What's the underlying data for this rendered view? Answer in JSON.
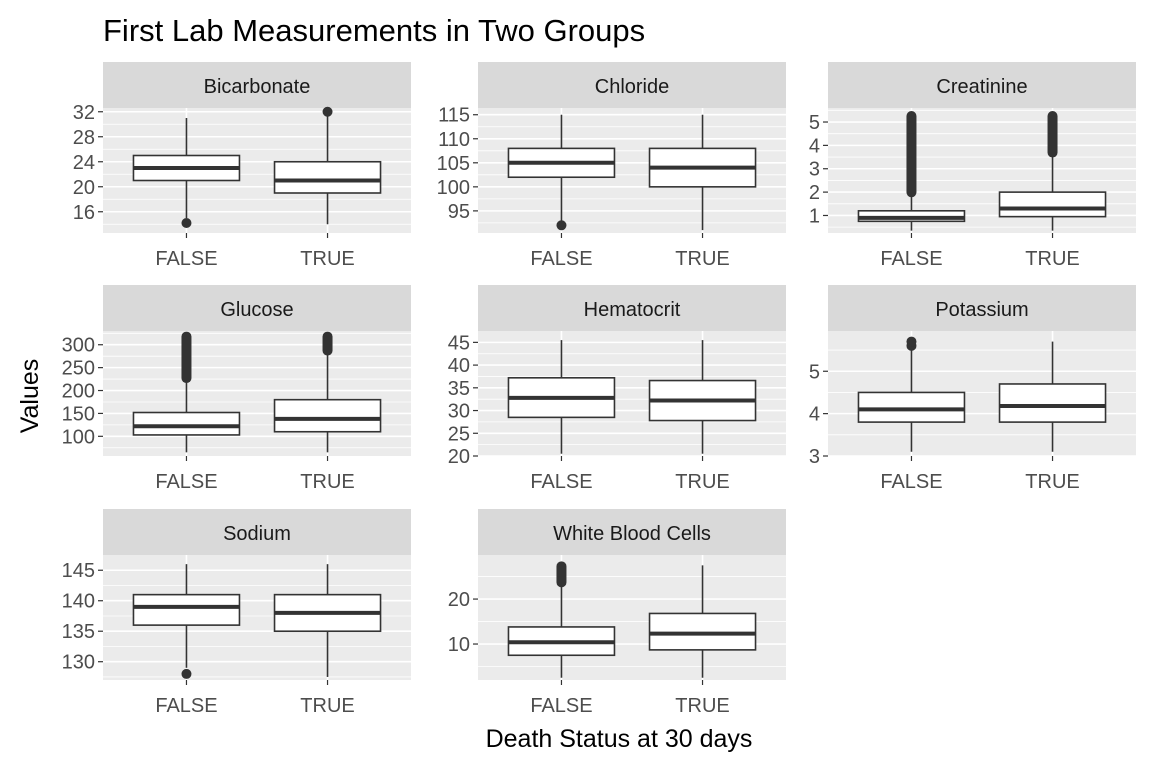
{
  "chart_data": {
    "type": "boxplot",
    "title": "First Lab Measurements in Two Groups",
    "xlabel": "Death Status at 30 days",
    "ylabel": "Values",
    "categories": [
      "FALSE",
      "TRUE"
    ],
    "grid": true,
    "colors": {
      "panel_bg": "#ebebeb",
      "strip_bg": "#d9d9d9",
      "grid": "#ffffff",
      "box_fill": "#ffffff",
      "box_stroke": "#333333",
      "tick_text": "#4d4d4d",
      "title_text": "#000000"
    },
    "panels": [
      {
        "name": "Bicarbonate",
        "ylim": [
          12.6,
          32.6
        ],
        "ticks": [
          16,
          20,
          24,
          28,
          32
        ],
        "boxes": [
          {
            "category": "FALSE",
            "q1": 21,
            "median": 23,
            "q3": 25,
            "lower": 15,
            "upper": 31,
            "outliers": [
              14.2
            ]
          },
          {
            "category": "TRUE",
            "q1": 19,
            "median": 21,
            "q3": 24,
            "lower": 14,
            "upper": 31.5,
            "outliers": [
              32
            ]
          }
        ]
      },
      {
        "name": "Chloride",
        "ylim": [
          90.4,
          116.4
        ],
        "ticks": [
          95,
          100,
          105,
          110,
          115
        ],
        "boxes": [
          {
            "category": "FALSE",
            "q1": 102,
            "median": 105,
            "q3": 108,
            "lower": 93,
            "upper": 115,
            "outliers": [
              92
            ]
          },
          {
            "category": "TRUE",
            "q1": 100,
            "median": 104,
            "q3": 108,
            "lower": 91,
            "upper": 115,
            "outliers": []
          }
        ]
      },
      {
        "name": "Creatinine",
        "ylim": [
          0.25,
          5.6
        ],
        "ticks": [
          1,
          2,
          3,
          4,
          5
        ],
        "boxes": [
          {
            "category": "FALSE",
            "q1": 0.75,
            "median": 0.9,
            "q3": 1.2,
            "lower": 0.35,
            "upper": 1.95,
            "outlier_band": [
              1.95,
              5.3
            ]
          },
          {
            "category": "TRUE",
            "q1": 0.95,
            "median": 1.3,
            "q3": 2.0,
            "lower": 0.35,
            "upper": 3.65,
            "outlier_band": [
              3.65,
              5.3
            ]
          }
        ]
      },
      {
        "name": "Glucose",
        "ylim": [
          57,
          330
        ],
        "ticks": [
          100,
          150,
          200,
          250,
          300
        ],
        "boxes": [
          {
            "category": "FALSE",
            "q1": 103,
            "median": 122,
            "q3": 152,
            "lower": 65,
            "upper": 225,
            "outlier_band": [
              225,
              320
            ]
          },
          {
            "category": "TRUE",
            "q1": 110,
            "median": 138,
            "q3": 180,
            "lower": 65,
            "upper": 285,
            "outlier_band": [
              285,
              320
            ]
          }
        ]
      },
      {
        "name": "Hematocrit",
        "ylim": [
          20,
          47.5
        ],
        "ticks": [
          20,
          25,
          30,
          35,
          40,
          45
        ],
        "boxes": [
          {
            "category": "FALSE",
            "q1": 28.5,
            "median": 32.8,
            "q3": 37.2,
            "lower": 20.5,
            "upper": 45.5,
            "outliers": []
          },
          {
            "category": "TRUE",
            "q1": 27.8,
            "median": 32.2,
            "q3": 36.6,
            "lower": 20.5,
            "upper": 45.5,
            "outliers": []
          }
        ]
      },
      {
        "name": "Potassium",
        "ylim": [
          3,
          5.95
        ],
        "ticks": [
          3,
          4,
          5
        ],
        "boxes": [
          {
            "category": "FALSE",
            "q1": 3.8,
            "median": 4.1,
            "q3": 4.5,
            "lower": 3.1,
            "upper": 5.5,
            "outliers": [
              5.6,
              5.7
            ]
          },
          {
            "category": "TRUE",
            "q1": 3.8,
            "median": 4.18,
            "q3": 4.7,
            "lower": 3.1,
            "upper": 5.7,
            "outliers": []
          }
        ]
      },
      {
        "name": "Sodium",
        "ylim": [
          127,
          147.5
        ],
        "ticks": [
          130,
          135,
          140,
          145
        ],
        "boxes": [
          {
            "category": "FALSE",
            "q1": 136,
            "median": 139,
            "q3": 141,
            "lower": 129,
            "upper": 146,
            "outliers": [
              128
            ]
          },
          {
            "category": "TRUE",
            "q1": 135,
            "median": 138,
            "q3": 141,
            "lower": 127.5,
            "upper": 146,
            "outliers": []
          }
        ]
      },
      {
        "name": "White Blood Cells",
        "ylim": [
          2,
          29.8
        ],
        "ticks": [
          10,
          20
        ],
        "boxes": [
          {
            "category": "FALSE",
            "q1": 7.5,
            "median": 10.4,
            "q3": 13.8,
            "lower": 2.5,
            "upper": 23.5,
            "outlier_band": [
              23.5,
              27.5
            ]
          },
          {
            "category": "TRUE",
            "q1": 8.7,
            "median": 12.3,
            "q3": 16.8,
            "lower": 2.5,
            "upper": 27.5,
            "outliers": []
          }
        ]
      }
    ]
  }
}
